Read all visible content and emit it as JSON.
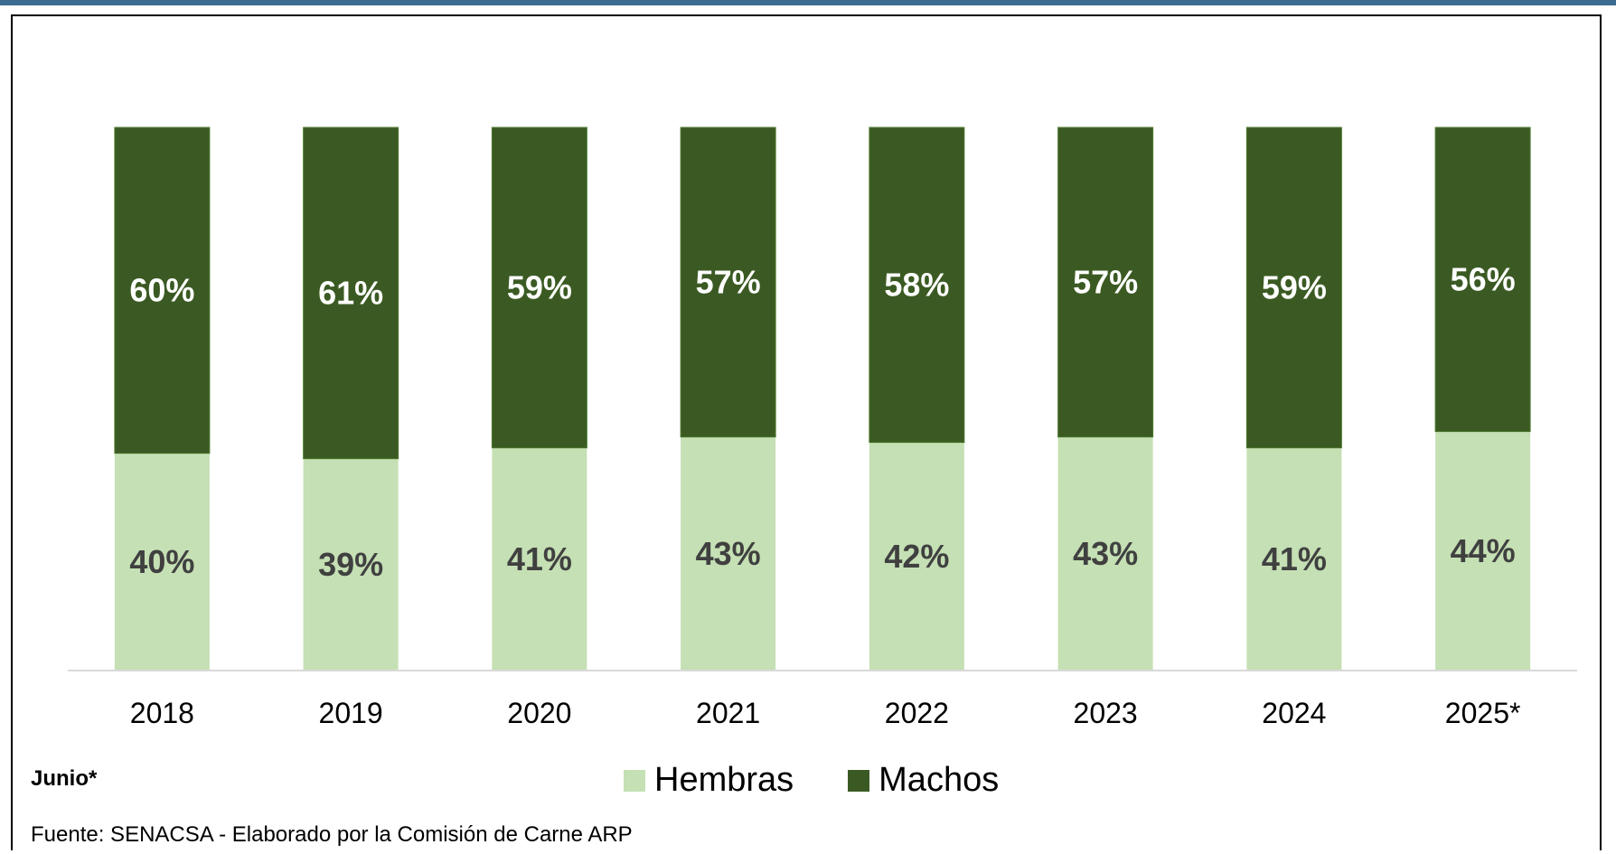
{
  "chart_data": {
    "type": "bar",
    "stacked": true,
    "categories": [
      "2018",
      "2019",
      "2020",
      "2021",
      "2022",
      "2023",
      "2024",
      "2025*"
    ],
    "series": [
      {
        "name": "Hembras",
        "values": [
          40,
          39,
          41,
          43,
          42,
          43,
          41,
          44
        ],
        "color": "#c5e0b4",
        "label_color": "#404040"
      },
      {
        "name": "Machos",
        "values": [
          60,
          61,
          59,
          57,
          58,
          57,
          59,
          56
        ],
        "color": "#3b5a23",
        "label_color": "#ffffff"
      }
    ],
    "ylim": [
      0,
      100
    ],
    "value_suffix": "%",
    "grid": false,
    "legend_position": "bottom"
  },
  "note": "Junio*",
  "source": "Fuente: SENACSA - Elaborado por la Comisión de Carne ARP",
  "colors": {
    "frame_top_bar": "#3d6b8f"
  }
}
